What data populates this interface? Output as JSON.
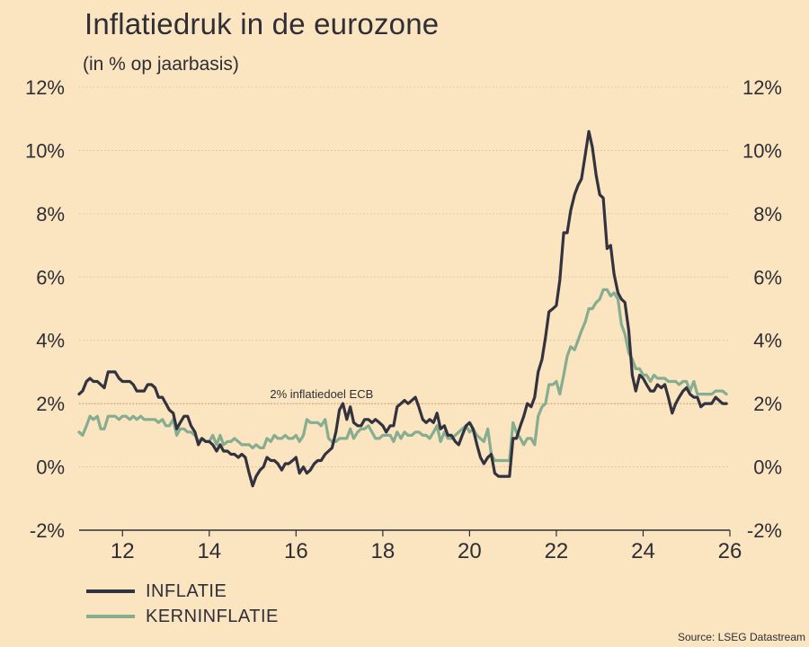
{
  "header": {
    "title": "Inflatiedruk in de eurozone",
    "subtitle": "(in % op jaarbasis)"
  },
  "footer": {
    "source": "Source: LSEG Datastream"
  },
  "colors": {
    "background": "#fbe5c0",
    "inflatie": "#33323f",
    "kerninflatie": "#86ad8f",
    "target": "#c48a55",
    "grid": "#c9b89a",
    "text": "#2e2e36"
  },
  "chart_data": {
    "type": "line",
    "title": "Inflatiedruk in de eurozone",
    "subtitle": "(in % op jaarbasis)",
    "xlabel": "",
    "ylabel": "",
    "xlim": [
      2011.0,
      2026.0
    ],
    "ylim": [
      -2,
      12
    ],
    "grid": true,
    "y_ticks": [
      -2,
      0,
      2,
      4,
      6,
      8,
      10,
      12
    ],
    "y_tick_labels": [
      "-2%",
      "0%",
      "2%",
      "4%",
      "6%",
      "8%",
      "10%",
      "12%"
    ],
    "x_ticks": [
      2012,
      2014,
      2016,
      2018,
      2020,
      2022,
      2024,
      2026
    ],
    "x_tick_labels": [
      "12",
      "14",
      "16",
      "18",
      "20",
      "22",
      "24",
      "26"
    ],
    "legend_position": "bottom-left",
    "annotations": [
      {
        "text": "2% inflatiedoel ECB",
        "x": 2015.4,
        "y": 2
      }
    ],
    "reference_line": {
      "label": "2% inflatiedoel ECB",
      "y": 2
    },
    "series": [
      {
        "name": "INFLATIE",
        "color": "#33323f",
        "x": [
          2011.0,
          2011.08,
          2011.17,
          2011.25,
          2011.33,
          2011.42,
          2011.5,
          2011.58,
          2011.67,
          2011.75,
          2011.83,
          2011.92,
          2012.0,
          2012.08,
          2012.17,
          2012.25,
          2012.33,
          2012.42,
          2012.5,
          2012.58,
          2012.67,
          2012.75,
          2012.83,
          2012.92,
          2013.0,
          2013.08,
          2013.17,
          2013.25,
          2013.33,
          2013.42,
          2013.5,
          2013.58,
          2013.67,
          2013.75,
          2013.83,
          2013.92,
          2014.0,
          2014.08,
          2014.17,
          2014.25,
          2014.33,
          2014.42,
          2014.5,
          2014.58,
          2014.67,
          2014.75,
          2014.83,
          2014.92,
          2015.0,
          2015.08,
          2015.17,
          2015.25,
          2015.33,
          2015.42,
          2015.5,
          2015.58,
          2015.67,
          2015.75,
          2015.83,
          2015.92,
          2016.0,
          2016.08,
          2016.17,
          2016.25,
          2016.33,
          2016.42,
          2016.5,
          2016.58,
          2016.67,
          2016.75,
          2016.83,
          2016.92,
          2017.0,
          2017.08,
          2017.17,
          2017.25,
          2017.33,
          2017.42,
          2017.5,
          2017.58,
          2017.67,
          2017.75,
          2017.83,
          2017.92,
          2018.0,
          2018.08,
          2018.17,
          2018.25,
          2018.33,
          2018.42,
          2018.5,
          2018.58,
          2018.67,
          2018.75,
          2018.83,
          2018.92,
          2019.0,
          2019.08,
          2019.17,
          2019.25,
          2019.33,
          2019.42,
          2019.5,
          2019.58,
          2019.67,
          2019.75,
          2019.83,
          2019.92,
          2020.0,
          2020.08,
          2020.17,
          2020.25,
          2020.33,
          2020.42,
          2020.5,
          2020.58,
          2020.67,
          2020.75,
          2020.83,
          2020.92,
          2021.0,
          2021.08,
          2021.17,
          2021.25,
          2021.33,
          2021.42,
          2021.5,
          2021.58,
          2021.67,
          2021.75,
          2021.83,
          2021.92,
          2022.0,
          2022.08,
          2022.17,
          2022.25,
          2022.33,
          2022.42,
          2022.5,
          2022.58,
          2022.67,
          2022.75,
          2022.83,
          2022.92,
          2023.0,
          2023.08,
          2023.17,
          2023.25,
          2023.33,
          2023.42,
          2023.5,
          2023.58,
          2023.67,
          2023.75,
          2023.83,
          2023.92,
          2024.0,
          2024.08,
          2024.17,
          2024.25,
          2024.33,
          2024.42,
          2024.5,
          2024.58,
          2024.67,
          2024.75,
          2024.83,
          2024.92,
          2025.0,
          2025.08,
          2025.17,
          2025.25,
          2025.33,
          2025.42,
          2025.5,
          2025.58,
          2025.67,
          2025.75,
          2025.83,
          2025.92
        ],
        "values": [
          2.3,
          2.4,
          2.7,
          2.8,
          2.7,
          2.7,
          2.6,
          2.5,
          3.0,
          3.0,
          3.0,
          2.8,
          2.7,
          2.7,
          2.7,
          2.6,
          2.4,
          2.4,
          2.4,
          2.6,
          2.6,
          2.5,
          2.2,
          2.2,
          2.0,
          1.8,
          1.7,
          1.2,
          1.4,
          1.6,
          1.6,
          1.3,
          1.1,
          0.7,
          0.9,
          0.8,
          0.8,
          0.7,
          0.5,
          0.7,
          0.5,
          0.5,
          0.4,
          0.4,
          0.3,
          0.4,
          0.3,
          -0.2,
          -0.6,
          -0.3,
          -0.1,
          0.0,
          0.3,
          0.2,
          0.2,
          0.1,
          -0.1,
          0.1,
          0.1,
          0.2,
          0.3,
          -0.2,
          0.0,
          -0.2,
          -0.1,
          0.1,
          0.2,
          0.2,
          0.4,
          0.5,
          0.6,
          1.1,
          1.8,
          2.0,
          1.5,
          1.9,
          1.4,
          1.3,
          1.3,
          1.5,
          1.5,
          1.4,
          1.5,
          1.4,
          1.3,
          1.1,
          1.3,
          1.3,
          1.9,
          2.0,
          2.1,
          2.0,
          2.1,
          2.2,
          1.9,
          1.5,
          1.4,
          1.5,
          1.4,
          1.7,
          1.2,
          1.3,
          1.0,
          1.0,
          0.8,
          0.7,
          1.0,
          1.3,
          1.4,
          1.2,
          0.7,
          0.3,
          0.1,
          0.3,
          0.4,
          -0.2,
          -0.3,
          -0.3,
          -0.3,
          -0.3,
          0.9,
          0.9,
          1.3,
          1.6,
          2.0,
          1.9,
          2.2,
          3.0,
          3.4,
          4.1,
          4.9,
          5.0,
          5.1,
          5.9,
          7.4,
          7.4,
          8.1,
          8.6,
          8.9,
          9.1,
          9.9,
          10.6,
          10.1,
          9.2,
          8.6,
          8.5,
          6.9,
          7.0,
          6.1,
          5.5,
          5.3,
          5.2,
          4.3,
          2.9,
          2.4,
          2.9,
          2.8,
          2.6,
          2.4,
          2.4,
          2.6,
          2.5,
          2.6,
          2.2,
          1.7,
          2.0,
          2.2,
          2.4,
          2.5,
          2.3,
          2.2,
          2.2,
          1.9,
          2.0,
          2.0,
          2.0,
          2.2,
          2.1,
          2.0,
          2.0
        ]
      },
      {
        "name": "KERNINFLATIE",
        "color": "#86ad8f",
        "x": [
          2011.0,
          2011.08,
          2011.17,
          2011.25,
          2011.33,
          2011.42,
          2011.5,
          2011.58,
          2011.67,
          2011.75,
          2011.83,
          2011.92,
          2012.0,
          2012.08,
          2012.17,
          2012.25,
          2012.33,
          2012.42,
          2012.5,
          2012.58,
          2012.67,
          2012.75,
          2012.83,
          2012.92,
          2013.0,
          2013.08,
          2013.17,
          2013.25,
          2013.33,
          2013.42,
          2013.5,
          2013.58,
          2013.67,
          2013.75,
          2013.83,
          2013.92,
          2014.0,
          2014.08,
          2014.17,
          2014.25,
          2014.33,
          2014.42,
          2014.5,
          2014.58,
          2014.67,
          2014.75,
          2014.83,
          2014.92,
          2015.0,
          2015.08,
          2015.17,
          2015.25,
          2015.33,
          2015.42,
          2015.5,
          2015.58,
          2015.67,
          2015.75,
          2015.83,
          2015.92,
          2016.0,
          2016.08,
          2016.17,
          2016.25,
          2016.33,
          2016.42,
          2016.5,
          2016.58,
          2016.67,
          2016.75,
          2016.83,
          2016.92,
          2017.0,
          2017.08,
          2017.17,
          2017.25,
          2017.33,
          2017.42,
          2017.5,
          2017.58,
          2017.67,
          2017.75,
          2017.83,
          2017.92,
          2018.0,
          2018.08,
          2018.17,
          2018.25,
          2018.33,
          2018.42,
          2018.5,
          2018.58,
          2018.67,
          2018.75,
          2018.83,
          2018.92,
          2019.0,
          2019.08,
          2019.17,
          2019.25,
          2019.33,
          2019.42,
          2019.5,
          2019.58,
          2019.67,
          2019.75,
          2019.83,
          2019.92,
          2020.0,
          2020.08,
          2020.17,
          2020.25,
          2020.33,
          2020.42,
          2020.5,
          2020.58,
          2020.67,
          2020.75,
          2020.83,
          2020.92,
          2021.0,
          2021.08,
          2021.17,
          2021.25,
          2021.33,
          2021.42,
          2021.5,
          2021.58,
          2021.67,
          2021.75,
          2021.83,
          2021.92,
          2022.0,
          2022.08,
          2022.17,
          2022.25,
          2022.33,
          2022.42,
          2022.5,
          2022.58,
          2022.67,
          2022.75,
          2022.83,
          2022.92,
          2023.0,
          2023.08,
          2023.17,
          2023.25,
          2023.33,
          2023.42,
          2023.5,
          2023.58,
          2023.67,
          2023.75,
          2023.83,
          2023.92,
          2024.0,
          2024.08,
          2024.17,
          2024.25,
          2024.33,
          2024.42,
          2024.5,
          2024.58,
          2024.67,
          2024.75,
          2024.83,
          2024.92,
          2025.0,
          2025.08,
          2025.17,
          2025.25,
          2025.33,
          2025.42,
          2025.5,
          2025.58,
          2025.67,
          2025.75,
          2025.83,
          2025.92
        ],
        "values": [
          1.1,
          1.0,
          1.3,
          1.6,
          1.5,
          1.6,
          1.2,
          1.2,
          1.6,
          1.6,
          1.6,
          1.5,
          1.6,
          1.6,
          1.5,
          1.6,
          1.5,
          1.6,
          1.5,
          1.5,
          1.5,
          1.5,
          1.4,
          1.5,
          1.3,
          1.3,
          1.5,
          1.0,
          1.2,
          1.2,
          1.1,
          1.1,
          1.0,
          0.8,
          0.9,
          0.8,
          0.8,
          1.0,
          0.7,
          1.0,
          0.7,
          0.8,
          0.8,
          0.9,
          0.8,
          0.7,
          0.7,
          0.7,
          0.6,
          0.7,
          0.6,
          0.6,
          0.9,
          0.8,
          1.0,
          0.9,
          0.9,
          1.0,
          0.9,
          0.9,
          1.0,
          0.8,
          1.0,
          1.5,
          1.4,
          1.4,
          1.4,
          1.3,
          1.5,
          0.9,
          0.8,
          0.8,
          0.9,
          0.9,
          0.9,
          1.2,
          0.9,
          1.1,
          1.2,
          1.2,
          1.3,
          1.1,
          0.9,
          0.9,
          1.0,
          1.0,
          1.0,
          0.8,
          1.1,
          0.9,
          1.1,
          1.0,
          1.0,
          1.1,
          1.1,
          1.0,
          1.0,
          0.9,
          1.1,
          1.3,
          0.8,
          1.1,
          0.9,
          0.9,
          1.0,
          1.1,
          1.2,
          1.3,
          1.1,
          1.2,
          1.0,
          0.9,
          0.8,
          1.2,
          0.4,
          0.2,
          0.2,
          0.2,
          0.2,
          0.2,
          1.4,
          1.1,
          0.9,
          0.7,
          0.9,
          0.9,
          0.7,
          1.6,
          1.9,
          2.0,
          2.6,
          2.6,
          2.7,
          2.3,
          2.9,
          3.5,
          3.8,
          3.7,
          4.0,
          4.3,
          4.6,
          5.0,
          5.0,
          5.2,
          5.3,
          5.6,
          5.6,
          5.4,
          5.5,
          5.3,
          4.5,
          4.2,
          3.6,
          3.4,
          3.1,
          3.1,
          2.9,
          2.9,
          2.7,
          2.9,
          2.8,
          2.8,
          2.8,
          2.7,
          2.7,
          2.7,
          2.6,
          2.7,
          2.7,
          2.4,
          2.7,
          2.3,
          2.3,
          2.3,
          2.3,
          2.3,
          2.4,
          2.4,
          2.4,
          2.3
        ]
      }
    ]
  },
  "legend": {
    "items": [
      {
        "label": "INFLATIE",
        "color": "#33323f"
      },
      {
        "label": "KERNINFLATIE",
        "color": "#86ad8f"
      }
    ]
  }
}
